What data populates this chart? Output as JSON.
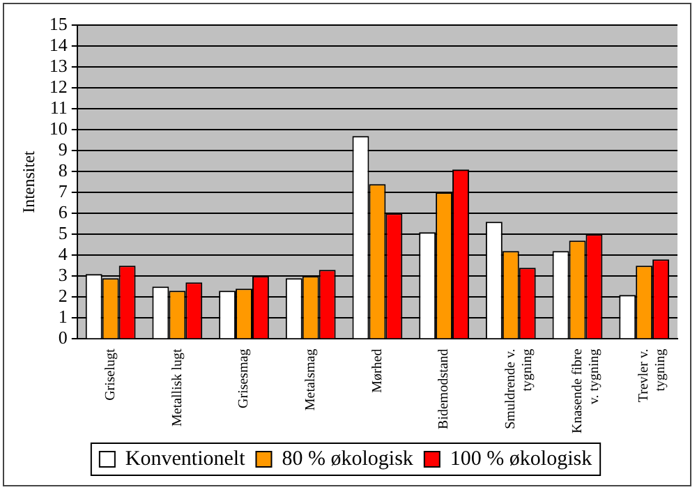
{
  "chart_data": {
    "type": "bar",
    "ylabel": "Intensitet",
    "categories": [
      "Griselugt",
      "Metallisk lugt",
      "Grisesmag",
      "Metalsmag",
      "Mørhed",
      "Bidemodstand",
      "Smuldrende v.\ntygning",
      "Knasende fibre\nv. tygning",
      "Trevler v.\ntygning"
    ],
    "series": [
      {
        "name": "Konventionelt",
        "color": "#ffffff",
        "values": [
          3.1,
          2.5,
          2.3,
          2.9,
          9.7,
          5.1,
          5.6,
          4.2,
          2.1
        ]
      },
      {
        "name": "80 % økologisk",
        "color": "#ff9900",
        "values": [
          2.9,
          2.3,
          2.4,
          3.0,
          7.4,
          7.0,
          4.2,
          4.7,
          3.5
        ]
      },
      {
        "name": "100 % økologisk",
        "color": "#ff0000",
        "values": [
          3.5,
          2.7,
          3.0,
          3.3,
          6.0,
          8.1,
          3.4,
          5.0,
          3.8
        ]
      }
    ],
    "ylim": [
      0,
      15
    ],
    "yticks": [
      0,
      1,
      2,
      3,
      4,
      5,
      6,
      7,
      8,
      9,
      10,
      11,
      12,
      13,
      14,
      15
    ],
    "grid": "y",
    "legend": "bottom"
  }
}
